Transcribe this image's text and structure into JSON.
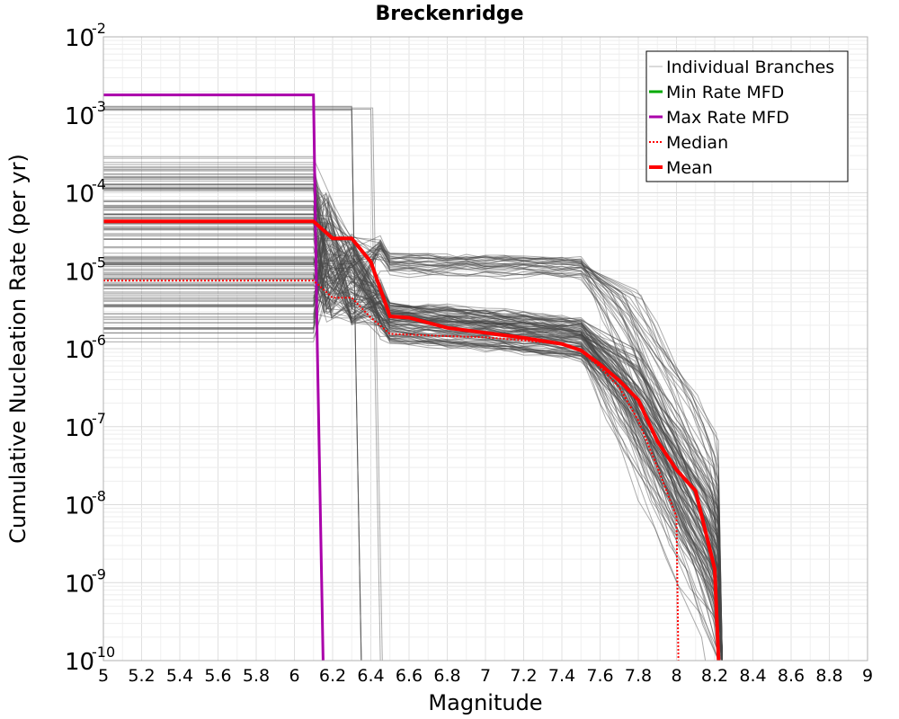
{
  "chart_data": {
    "type": "line",
    "title": "Breckenridge",
    "xlabel": "Magnitude",
    "ylabel": "Cumulative Nucleation Rate (per yr)",
    "xlim": [
      5,
      9
    ],
    "ylim": [
      1e-10,
      0.01
    ],
    "yscale": "log",
    "grid": true,
    "legend_position": "top-right",
    "x_ticks": [
      "5",
      "5.2",
      "5.4",
      "5.6",
      "5.8",
      "6",
      "6.2",
      "6.4",
      "6.6",
      "6.8",
      "7",
      "7.2",
      "7.4",
      "7.6",
      "7.8",
      "8",
      "8.2",
      "8.4",
      "8.6",
      "8.8",
      "9"
    ],
    "y_ticks": [
      {
        "base": "10",
        "exp": "-2",
        "value": 0.01
      },
      {
        "base": "10",
        "exp": "-3",
        "value": 0.001
      },
      {
        "base": "10",
        "exp": "-4",
        "value": 0.0001
      },
      {
        "base": "10",
        "exp": "-5",
        "value": 1e-05
      },
      {
        "base": "10",
        "exp": "-6",
        "value": 1e-06
      },
      {
        "base": "10",
        "exp": "-7",
        "value": 1e-07
      },
      {
        "base": "10",
        "exp": "-8",
        "value": 1e-08
      },
      {
        "base": "10",
        "exp": "-9",
        "value": 1e-09
      },
      {
        "base": "10",
        "exp": "-10",
        "value": 1e-10
      }
    ],
    "legend": [
      {
        "label": "Individual Branches",
        "color": "#b4b4b4",
        "style": "thin"
      },
      {
        "label": "Min Rate MFD",
        "color": "#00aa00",
        "style": "solid"
      },
      {
        "label": "Max Rate MFD",
        "color": "#aa00aa",
        "style": "solid"
      },
      {
        "label": "Median",
        "color": "#ff0000",
        "style": "dotted"
      },
      {
        "label": "Mean",
        "color": "#ff0000",
        "style": "thick"
      }
    ],
    "series": [
      {
        "name": "Max Rate MFD",
        "color": "#aa00aa",
        "points": [
          [
            5.0,
            0.0018
          ],
          [
            6.1,
            0.0018
          ],
          [
            6.12,
            1e-06
          ],
          [
            6.15,
            1e-10
          ]
        ]
      },
      {
        "name": "Mean",
        "color": "#ff0000",
        "points": [
          [
            5.0,
            4.3e-05
          ],
          [
            6.1,
            4.3e-05
          ],
          [
            6.2,
            2.6e-05
          ],
          [
            6.3,
            2.6e-05
          ],
          [
            6.4,
            1.3e-05
          ],
          [
            6.5,
            2.6e-06
          ],
          [
            6.6,
            2.5e-06
          ],
          [
            6.8,
            1.85e-06
          ],
          [
            7.0,
            1.6e-06
          ],
          [
            7.2,
            1.38e-06
          ],
          [
            7.4,
            1.15e-06
          ],
          [
            7.5,
            9.5e-07
          ],
          [
            7.6,
            6.3e-07
          ],
          [
            7.7,
            3.9e-07
          ],
          [
            7.8,
            2.2e-07
          ],
          [
            7.9,
            6.5e-08
          ],
          [
            8.0,
            2.8e-08
          ],
          [
            8.1,
            1.5e-08
          ],
          [
            8.2,
            1.5e-09
          ],
          [
            8.22,
            1e-10
          ]
        ]
      },
      {
        "name": "Median",
        "color": "#ff0000",
        "points": [
          [
            5.0,
            7.5e-06
          ],
          [
            6.1,
            7.5e-06
          ],
          [
            6.2,
            4.5e-06
          ],
          [
            6.3,
            4.5e-06
          ],
          [
            6.4,
            2.5e-06
          ],
          [
            6.5,
            1.55e-06
          ],
          [
            6.8,
            1.45e-06
          ],
          [
            7.0,
            1.4e-06
          ],
          [
            7.2,
            1.28e-06
          ],
          [
            7.4,
            1.15e-06
          ],
          [
            7.5,
            9.2e-07
          ],
          [
            7.6,
            5.8e-07
          ],
          [
            7.7,
            3.2e-07
          ],
          [
            7.8,
            1.2e-07
          ],
          [
            7.9,
            3e-08
          ],
          [
            8.0,
            7e-09
          ],
          [
            8.01,
            1e-10
          ]
        ]
      }
    ]
  }
}
